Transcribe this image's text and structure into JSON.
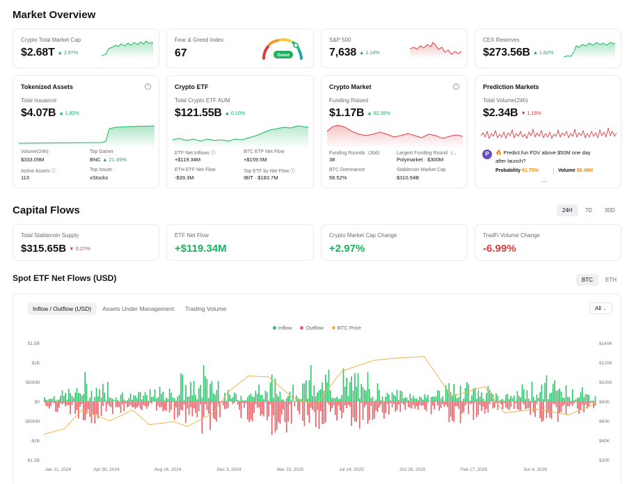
{
  "titles": {
    "market_overview": "Market Overview",
    "capital_flows": "Capital Flows",
    "spot_etf": "Spot ETF Net Flows (USD)"
  },
  "colors": {
    "up": "#16b45e",
    "down": "#e0393e",
    "inflow": "#2ec36b",
    "outflow": "#ec5a62",
    "btc_price": "#f0b44c"
  },
  "top_cards": [
    {
      "label": "Crypto Total Market Cap",
      "value": "$2.68T",
      "change": "▲ 2.97%"
    },
    {
      "label": "Fear & Greed Index",
      "value": "67",
      "badge": "Greed",
      "gauge_value": 67
    },
    {
      "label": "S&P 500",
      "value": "7,638",
      "change": "▲ 1.14%"
    },
    {
      "label": "CEX Reserves",
      "value": "$273.56B",
      "change": "▲ 1.82%"
    }
  ],
  "tokenized": {
    "title": "Tokenized Assets",
    "label": "Total Issuance",
    "value": "$4.07B",
    "change": "▲ 1.82%",
    "stats": [
      {
        "label": "Volume(24h)",
        "value": "$333.09M"
      },
      {
        "label": "Top Gainer",
        "value": "BNC",
        "extra": "▲ 21.49%"
      },
      {
        "label": "Active Assets ⓘ",
        "value": "113"
      },
      {
        "label": "Top Issuer",
        "value": "xStocks"
      }
    ]
  },
  "etf": {
    "title": "Crypto ETF",
    "label": "Total Crypto ETF AUM",
    "value": "$121.55B",
    "change": "▲ 0.10%",
    "stats": [
      {
        "label": "ETF Net Inflows ⓘ",
        "value": "+$119.34M"
      },
      {
        "label": "BTC ETF Net Flow",
        "value": "+$159.5M"
      },
      {
        "label": "ETH ETF Net Flow",
        "value": "-$39.3M"
      },
      {
        "label": "Top ETF by Net Flow ⓘ",
        "value": "IBIT · $183.7M"
      }
    ]
  },
  "crypto_market": {
    "title": "Crypto Market",
    "label": "Funding Raised",
    "value": "$1.17B",
    "change": "▲ 82.16%",
    "stats": [
      {
        "label": "Funding Rounds（30d）",
        "value": "38"
      },
      {
        "label": "Largest Funding Round（...",
        "value": "Polymarket · $300M"
      },
      {
        "label": "BTC Dominance",
        "value": "58.52%"
      },
      {
        "label": "Stablecoin Market Cap",
        "value": "$310.94B"
      }
    ]
  },
  "prediction": {
    "title": "Prediction Markets",
    "label": "Total Volume(24h)",
    "value": "$2.34B",
    "change": "▼ 1.15%",
    "market_icon": "P",
    "question_line1": "Predict.fun FDV above $50M one day",
    "question_line2": "after launch?",
    "probability_label": "Probability",
    "probability_value": "81.75%",
    "volume_label": "Volume",
    "volume_value": "$6.48M"
  },
  "capital_tabs": [
    "24H",
    "7D",
    "30D"
  ],
  "capital_cards": [
    {
      "label": "Total Stablecoin Supply",
      "value": "$315.65B",
      "change": "▼ 0.27%"
    },
    {
      "label": "ETF Net Flow",
      "value": "+$119.34M"
    },
    {
      "label": "Crypto Market Cap Change",
      "value": "+2.97%"
    },
    {
      "label": "TradFi Volume Change",
      "value": "-6.99%"
    }
  ],
  "asset_tabs": [
    "BTC",
    "ETH"
  ],
  "chart_tabs": [
    "Inflow / Outflow (USD)",
    "Assets Under Management",
    "Trading Volume"
  ],
  "chart_filter": "All",
  "chart_data": {
    "type": "bar",
    "legend": [
      "Inflow",
      "Outflow",
      "BTC Price"
    ],
    "legend_placement": "top-center",
    "y_left_ticks": [
      "$1.5B",
      "$1B",
      "$500M",
      "$0",
      "-$500M",
      "-$1B",
      "-$1.5B"
    ],
    "y_right_ticks": [
      "$140K",
      "$120K",
      "$100K",
      "$80K",
      "$60K",
      "$40K",
      "$20K"
    ],
    "x_ticks": [
      "Jan 11, 2024",
      "Apr 30, 2024",
      "Aug 16, 2024",
      "Dec 3, 2024",
      "Mar 25, 2025",
      "Jul 14, 2025",
      "Oct 28, 2025",
      "Feb 17, 2026",
      "Jun 4, 2026"
    ],
    "ylim_left": [
      -1500,
      1500
    ],
    "ylim_right": [
      20000,
      140000
    ],
    "btc_price_series": [
      {
        "date": "2024-01-11",
        "price": 46000
      },
      {
        "date": "2024-02-15",
        "price": 52000
      },
      {
        "date": "2024-03-14",
        "price": 71000
      },
      {
        "date": "2024-04-30",
        "price": 60000
      },
      {
        "date": "2024-06-07",
        "price": 71000
      },
      {
        "date": "2024-07-05",
        "price": 56000
      },
      {
        "date": "2024-08-16",
        "price": 59000
      },
      {
        "date": "2024-09-06",
        "price": 54000
      },
      {
        "date": "2024-10-20",
        "price": 68000
      },
      {
        "date": "2024-11-12",
        "price": 89000
      },
      {
        "date": "2024-12-17",
        "price": 106000
      },
      {
        "date": "2025-01-20",
        "price": 105000
      },
      {
        "date": "2025-02-28",
        "price": 84000
      },
      {
        "date": "2025-04-08",
        "price": 76000
      },
      {
        "date": "2025-05-22",
        "price": 111000
      },
      {
        "date": "2025-07-14",
        "price": 122000
      },
      {
        "date": "2025-08-14",
        "price": 124000
      },
      {
        "date": "2025-10-06",
        "price": 126000
      },
      {
        "date": "2025-11-21",
        "price": 85000
      },
      {
        "date": "2026-01-15",
        "price": 95000
      },
      {
        "date": "2026-02-17",
        "price": 68000
      },
      {
        "date": "2026-04-10",
        "price": 72000
      },
      {
        "date": "2026-06-04",
        "price": 66000
      },
      {
        "date": "2026-07-20",
        "price": 78000
      }
    ]
  }
}
